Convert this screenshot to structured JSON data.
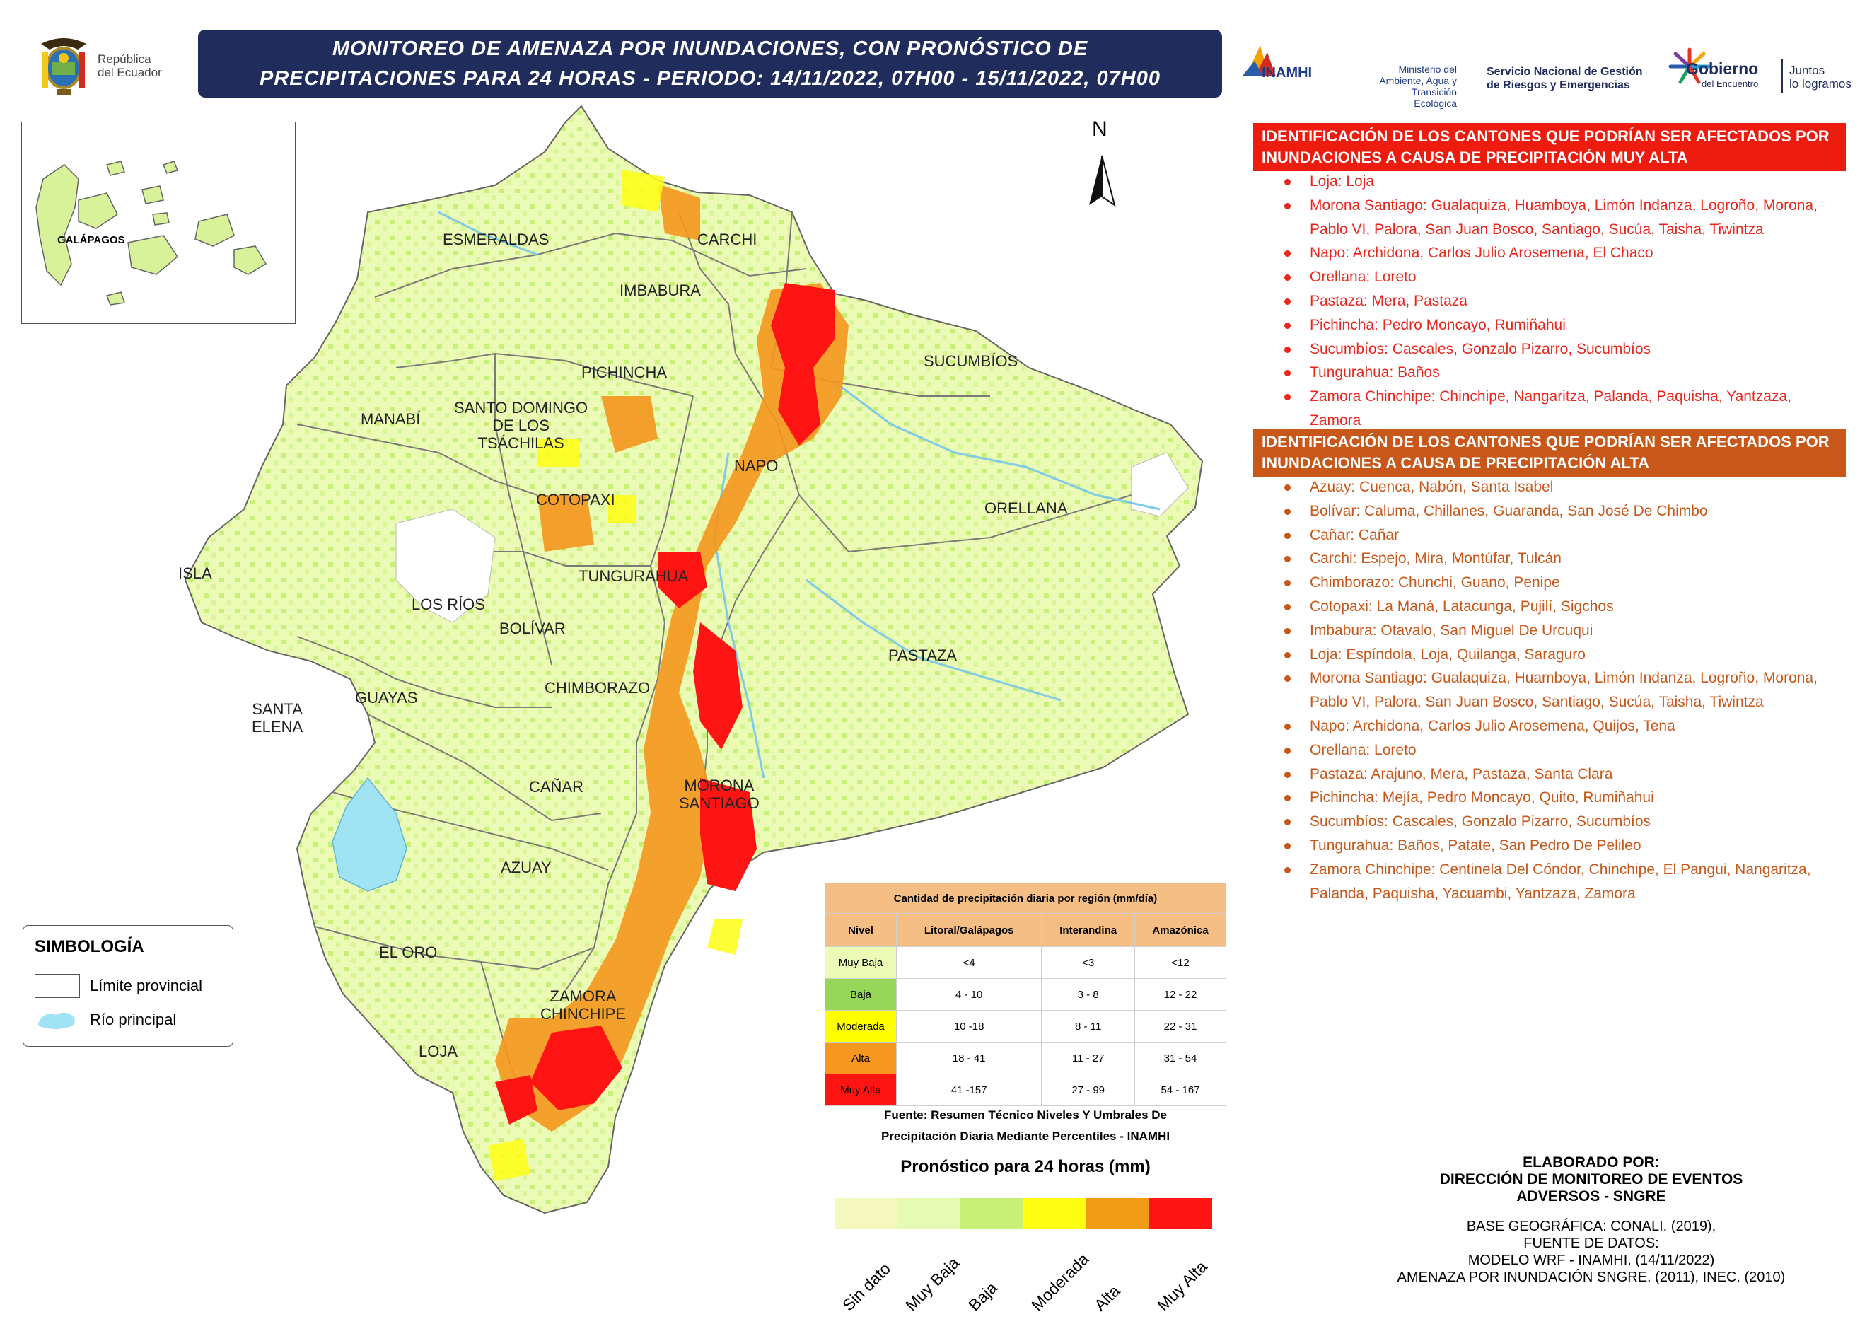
{
  "header": {
    "republica_line1": "República",
    "republica_line2": "del Ecuador",
    "title_line1": "MONITOREO DE AMENAZA POR INUNDACIONES, CON PRONÓSTICO DE",
    "title_line2": "PRECIPITACIONES  PARA 24  HORAS - PERIODO: 14/11/2022, 07H00 - 15/11/2022, 07H00",
    "logo_inamhi": "INAMHI",
    "logo_ministerio": [
      "Ministerio del",
      "Ambiente, Agua y",
      "Transición Ecológica"
    ],
    "logo_sngre": [
      "Servicio Nacional de Gestión",
      "de Riesgos y Emergencias"
    ],
    "logo_gobierno": [
      "Gobierno",
      "del Encuentro"
    ],
    "logo_juntos": [
      "Juntos",
      "lo logramos"
    ]
  },
  "map": {
    "north_label": "N",
    "galapagos_label": "GALÁPAGOS",
    "provinces": {
      "esmeraldas": "ESMERALDAS",
      "carchi": "CARCHI",
      "imbabura": "IMBABURA",
      "sucumbios": "SUCUMBÍOS",
      "pichincha": "PICHINCHA",
      "manabi": "MANABÍ",
      "santo_domingo": [
        "SANTO DOMINGO",
        "DE LOS",
        "TSÁCHILAS"
      ],
      "napo": "NAPO",
      "cotopaxi": "COTOPAXI",
      "orellana": "ORELLANA",
      "isla": "ISLA",
      "tungurahua": "TUNGURAHUA",
      "los_rios": "LOS RÍOS",
      "bolivar": "BOLÍVAR",
      "pastaza": "PASTAZA",
      "santa_elena": [
        "SANTA",
        "ELENA"
      ],
      "guayas": "GUAYAS",
      "chimborazo": "CHIMBORAZO",
      "canar": "CAÑAR",
      "morona": [
        "MORONA",
        "SANTIAGO"
      ],
      "azuay": "AZUAY",
      "el_oro": "EL ORO",
      "zamora": [
        "ZAMORA",
        "CHINCHIPE"
      ],
      "loja": "LOJA"
    }
  },
  "simbologia": {
    "title": "SIMBOLOGÍA",
    "limite": "Límite provincial",
    "rio": "Río principal"
  },
  "muy_alta": {
    "header": [
      "IDENTIFICACIÓN DE LOS CANTONES QUE PODRÍAN SER AFECTADOS POR",
      "INUNDACIONES A CAUSA DE  PRECIPITACIÓN MUY ALTA"
    ],
    "items": [
      "Loja: Loja",
      "Morona Santiago: Gualaquiza, Huamboya, Limón Indanza, Logroño, Morona,",
      "Pablo VI, Palora, San Juan Bosco, Santiago, Sucúa, Taisha, Tiwintza",
      "Napo: Archidona, Carlos Julio Arosemena, El Chaco",
      "Orellana: Loreto",
      "Pastaza: Mera, Pastaza",
      "Pichincha: Pedro Moncayo, Rumiñahui",
      "Sucumbíos: Cascales, Gonzalo Pizarro, Sucumbíos",
      "Tungurahua: Baños",
      "Zamora Chinchipe: Chinchipe, Nangaritza, Palanda, Paquisha, Yantzaza,",
      "Zamora"
    ]
  },
  "alta": {
    "header": [
      "IDENTIFICACIÓN DE LOS CANTONES QUE PODRÍAN SER AFECTADOS POR",
      "INUNDACIONES A CAUSA DE  PRECIPITACIÓN  ALTA"
    ],
    "items": [
      "Azuay: Cuenca, Nabón, Santa Isabel",
      "Bolívar: Caluma, Chillanes, Guaranda, San José De Chimbo",
      "Cañar: Cañar",
      "Carchi: Espejo, Mira, Montúfar, Tulcán",
      "Chimborazo: Chunchi, Guano, Penipe",
      "Cotopaxi: La Maná, Latacunga, Pujilí, Sigchos",
      "Imbabura: Otavalo, San Miguel De Urcuqui",
      "Loja: Espíndola, Loja, Quilanga, Saraguro",
      "Morona Santiago: Gualaquiza, Huamboya, Limón Indanza, Logroño, Morona,",
      "Pablo VI, Palora, San Juan Bosco, Santiago, Sucúa, Taisha, Tiwintza",
      "Napo: Archidona, Carlos Julio Arosemena, Quijos, Tena",
      "Orellana: Loreto",
      "Pastaza: Arajuno, Mera, Pastaza, Santa Clara",
      "Pichincha: Mejía, Pedro Moncayo, Quito, Rumiñahui",
      "Sucumbíos: Cascales, Gonzalo Pizarro, Sucumbíos",
      "Tungurahua: Baños, Patate, San Pedro De Pelileo",
      "Zamora Chinchipe: Centinela Del Cóndor, Chinchipe, El Pangui, Nangaritza,",
      "Palanda, Paquisha, Yacuambi, Yantzaza, Zamora"
    ]
  },
  "table": {
    "caption": "Cantidad de precipitación diaria por región (mm/día)",
    "columns": [
      "Nivel",
      "Litoral/Galápagos",
      "Interandina",
      "Amazónica"
    ],
    "rows": [
      {
        "nivel": "Muy Baja",
        "color": "#ebfab4",
        "litoral": "<4",
        "interandina": "<3",
        "amazonica": "<12"
      },
      {
        "nivel": "Baja",
        "color": "#96d75a",
        "litoral": "4 - 10",
        "interandina": "3 - 8",
        "amazonica": "12 - 22"
      },
      {
        "nivel": "Moderada",
        "color": "#ffff00",
        "litoral": "10 -18",
        "interandina": "8 - 11",
        "amazonica": "22 - 31"
      },
      {
        "nivel": "Alta",
        "color": "#f5961e",
        "litoral": "18 - 41",
        "interandina": "11 - 27",
        "amazonica": "31 - 54"
      },
      {
        "nivel": "Muy Alta",
        "color": "#ff1414",
        "litoral": "41 -157",
        "interandina": "27 - 99",
        "amazonica": "54 - 167"
      }
    ],
    "fuente": [
      "Fuente: Resumen Técnico Niveles Y Umbrales De",
      "Precipitación Diaria Mediante Percentiles - INAMHI"
    ]
  },
  "forecast_legend": {
    "title": "Pronóstico para 24 horas (mm)",
    "classes": [
      {
        "label": "Sin dato",
        "color": "#f5f8be"
      },
      {
        "label": "Muy Baja",
        "color": "#e6fab4"
      },
      {
        "label": "Baja",
        "color": "#c8f078"
      },
      {
        "label": "Moderada",
        "color": "#ffff14"
      },
      {
        "label": "Alta",
        "color": "#f09b14"
      },
      {
        "label": "Muy Alta",
        "color": "#ff1414"
      }
    ]
  },
  "credits": {
    "elaborado": [
      "ELABORADO POR:",
      "DIRECCIÓN DE MONITOREO DE EVENTOS",
      "ADVERSOS - SNGRE"
    ],
    "base": [
      "BASE GEOGRÁFICA: CONALI. (2019),",
      "FUENTE DE DATOS:",
      "MODELO WRF - INAMHI. (14/11/2022)",
      "AMENAZA POR INUNDACIÓN SNGRE. (2011), INEC. (2010)"
    ]
  }
}
